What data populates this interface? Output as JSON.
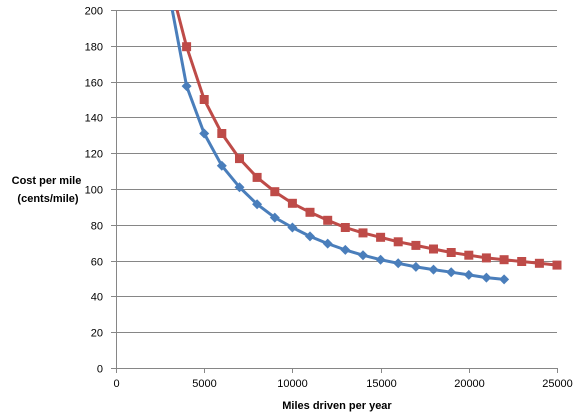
{
  "chart_data": {
    "type": "line",
    "ylabel_lines": [
      "Cost per mile",
      "(cents/mile)"
    ],
    "xlabel": "Miles driven per year",
    "xlim": [
      0,
      25000
    ],
    "ylim": [
      0,
      200
    ],
    "xticks": [
      0,
      5000,
      10000,
      15000,
      20000,
      25000
    ],
    "yticks": [
      0,
      20,
      40,
      60,
      80,
      100,
      120,
      140,
      160,
      180,
      200
    ],
    "grid": "horizontal",
    "legend": "none",
    "series": [
      {
        "color": "#4A7EBB",
        "marker": "diamond",
        "x": [
          3000,
          4000,
          5000,
          6000,
          7000,
          8000,
          9000,
          10000,
          11000,
          12000,
          13000,
          14000,
          15000,
          16000,
          17000,
          18000,
          19000,
          20000,
          21000,
          22000
        ],
        "y": [
          210,
          157.5,
          131,
          113,
          101,
          91.5,
          84,
          78.5,
          73.5,
          69.5,
          66,
          63,
          60.5,
          58.5,
          56.5,
          55,
          53.5,
          52,
          50.5,
          49.5
        ]
      },
      {
        "color": "#BE4B48",
        "marker": "square",
        "x": [
          3200,
          4000,
          5000,
          6000,
          7000,
          8000,
          9000,
          10000,
          11000,
          12000,
          13000,
          14000,
          15000,
          16000,
          17000,
          18000,
          19000,
          20000,
          21000,
          22000,
          23000,
          24000,
          25000
        ],
        "y": [
          210,
          179.5,
          150,
          131,
          117,
          106.5,
          98.5,
          92,
          87,
          82.5,
          78.5,
          75.5,
          73,
          70.5,
          68.5,
          66.5,
          64.5,
          63,
          61.5,
          60.5,
          59.5,
          58.5,
          57.5
        ]
      }
    ]
  }
}
